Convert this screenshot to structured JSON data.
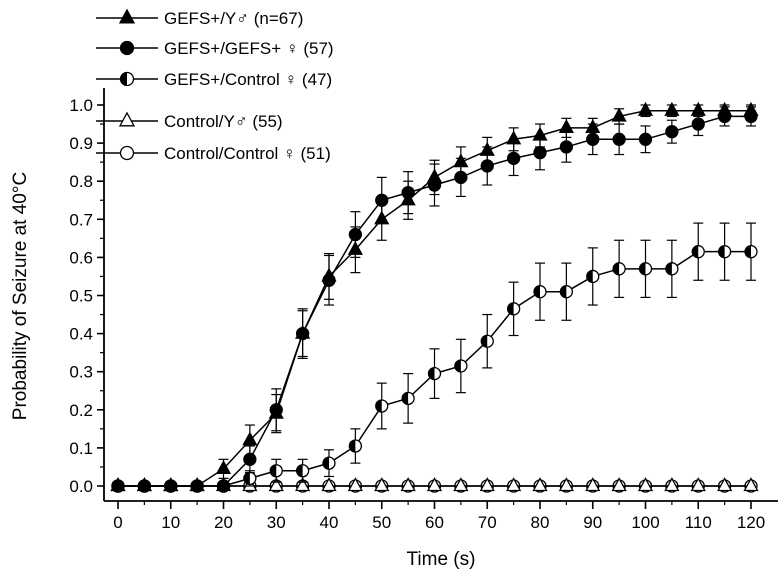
{
  "chart_data": {
    "type": "line",
    "xlabel": "Time (s)",
    "ylabel": "Probability of Seizure at 40°C",
    "xlim": [
      -3,
      125
    ],
    "ylim": [
      0,
      1.05
    ],
    "x_ticks": [
      0,
      10,
      20,
      30,
      40,
      50,
      60,
      70,
      80,
      90,
      100,
      110,
      120
    ],
    "y_ticks": [
      0.0,
      0.1,
      0.2,
      0.3,
      0.4,
      0.5,
      0.6,
      0.7,
      0.8,
      0.9,
      1.0
    ],
    "x_tick_labels": [
      "0",
      "10",
      "20",
      "30",
      "40",
      "50",
      "60",
      "70",
      "80",
      "90",
      "100",
      "110",
      "120"
    ],
    "y_tick_labels": [
      "0.0",
      "0.1",
      "0.2",
      "0.3",
      "0.4",
      "0.5",
      "0.6",
      "0.7",
      "0.8",
      "0.9",
      "1.0"
    ],
    "legend_position": "top-left",
    "x": [
      0,
      5,
      10,
      15,
      20,
      25,
      30,
      35,
      40,
      45,
      50,
      55,
      60,
      65,
      70,
      75,
      80,
      85,
      90,
      95,
      100,
      105,
      110,
      115,
      120
    ],
    "series": [
      {
        "name": "GEFS+/Y♂ (n=67)",
        "marker": "triangle-filled",
        "values": [
          0,
          0,
          0,
          0,
          0.045,
          0.12,
          0.19,
          0.4,
          0.55,
          0.62,
          0.7,
          0.75,
          0.81,
          0.85,
          0.88,
          0.91,
          0.92,
          0.94,
          0.94,
          0.97,
          0.985,
          0.985,
          0.985,
          0.985,
          0.985
        ],
        "errors": [
          0,
          0,
          0,
          0,
          0.025,
          0.04,
          0.05,
          0.06,
          0.06,
          0.06,
          0.055,
          0.05,
          0.045,
          0.04,
          0.035,
          0.03,
          0.03,
          0.025,
          0.025,
          0.02,
          0.015,
          0.015,
          0.015,
          0.015,
          0.015
        ]
      },
      {
        "name": "GEFS+/GEFS+ ♀ (57)",
        "marker": "circle-filled",
        "values": [
          0,
          0,
          0,
          0,
          0,
          0.07,
          0.2,
          0.4,
          0.54,
          0.66,
          0.75,
          0.77,
          0.79,
          0.81,
          0.84,
          0.86,
          0.875,
          0.89,
          0.91,
          0.91,
          0.91,
          0.93,
          0.95,
          0.97,
          0.97
        ],
        "errors": [
          0,
          0,
          0,
          0,
          0,
          0.035,
          0.055,
          0.065,
          0.065,
          0.06,
          0.06,
          0.055,
          0.055,
          0.05,
          0.05,
          0.045,
          0.045,
          0.04,
          0.04,
          0.04,
          0.035,
          0.03,
          0.03,
          0.025,
          0.025
        ]
      },
      {
        "name": "GEFS+/Control ♀ (47)",
        "marker": "circle-half",
        "values": [
          0,
          0,
          0,
          0,
          0,
          0.02,
          0.04,
          0.04,
          0.06,
          0.105,
          0.21,
          0.23,
          0.295,
          0.315,
          0.38,
          0.465,
          0.51,
          0.51,
          0.55,
          0.57,
          0.57,
          0.57,
          0.615,
          0.615,
          0.615
        ],
        "errors": [
          0,
          0,
          0,
          0,
          0,
          0.02,
          0.03,
          0.03,
          0.035,
          0.045,
          0.06,
          0.065,
          0.065,
          0.07,
          0.07,
          0.07,
          0.075,
          0.075,
          0.075,
          0.075,
          0.075,
          0.075,
          0.075,
          0.075,
          0.075
        ]
      },
      {
        "name": "Control/Y♂ (55)",
        "marker": "triangle-open",
        "values": [
          0,
          0,
          0,
          0,
          0,
          0,
          0,
          0,
          0,
          0,
          0,
          0,
          0,
          0,
          0,
          0,
          0,
          0,
          0,
          0,
          0,
          0,
          0,
          0,
          0
        ],
        "errors": [
          0,
          0,
          0,
          0,
          0,
          0,
          0,
          0,
          0,
          0,
          0,
          0,
          0,
          0,
          0,
          0,
          0,
          0,
          0,
          0,
          0,
          0,
          0,
          0,
          0
        ]
      },
      {
        "name": "Control/Control ♀ (51)",
        "marker": "circle-open",
        "values": [
          0,
          0,
          0,
          0,
          0,
          0,
          0,
          0,
          0,
          0,
          0,
          0,
          0,
          0,
          0,
          0,
          0,
          0,
          0,
          0,
          0,
          0,
          0,
          0,
          0
        ],
        "errors": [
          0,
          0,
          0,
          0,
          0,
          0,
          0,
          0,
          0,
          0,
          0,
          0,
          0,
          0,
          0,
          0,
          0,
          0,
          0,
          0,
          0,
          0,
          0,
          0,
          0
        ]
      }
    ]
  }
}
